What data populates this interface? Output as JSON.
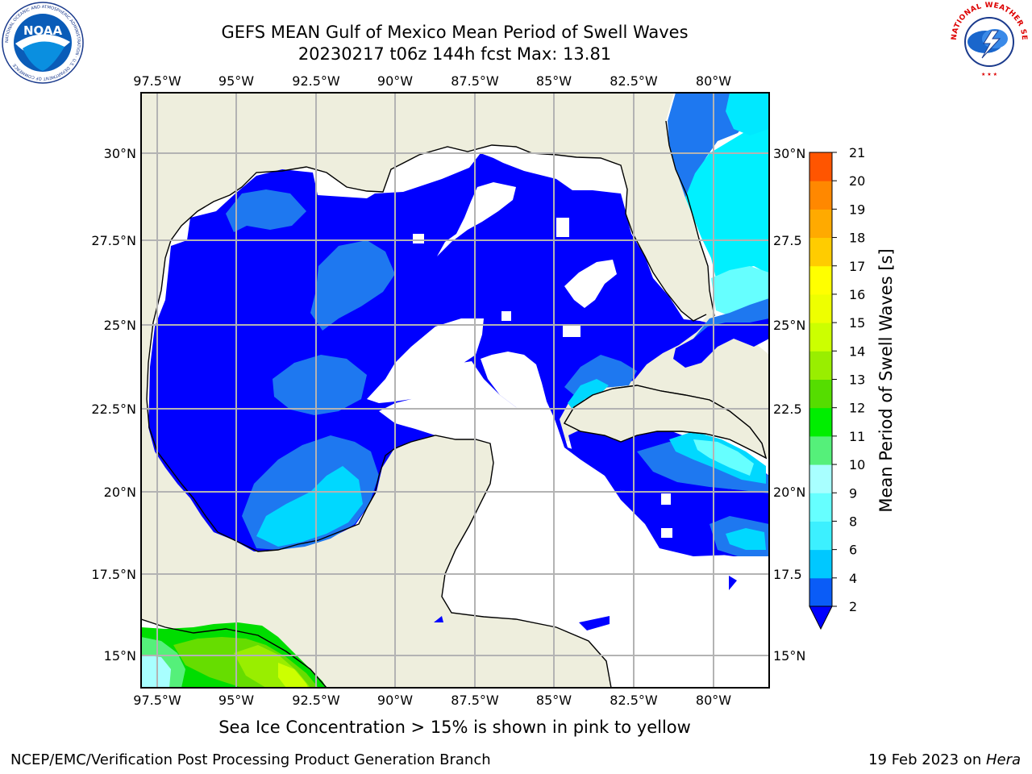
{
  "title": {
    "line1": "GEFS MEAN Gulf of Mexico Mean Period of Swell Waves",
    "line2": "20230217 t06z 144h fcst   Max: 13.81"
  },
  "map": {
    "region": "Gulf of Mexico",
    "lon_range": [
      -98.5,
      -78.75
    ],
    "lat_range": [
      14,
      31.75
    ],
    "lon_ticks": [
      "97.5°W",
      "95°W",
      "92.5°W",
      "90°W",
      "87.5°W",
      "85°W",
      "82.5°W",
      "80°W"
    ],
    "lat_ticks_left": [
      "30°N",
      "27.5°N",
      "25°N",
      "22.5°N",
      "20°N",
      "17.5°N",
      "15°N"
    ],
    "lat_ticks_right": [
      "30°N",
      "27.5",
      "25°N",
      "22.5",
      "20°N",
      "17.5",
      "15°N"
    ],
    "colors": {
      "land": "#eeeedd",
      "ocean_no_data": "#ffffff",
      "grid": "#b3b3b3"
    }
  },
  "colorbar": {
    "label": "Mean Period of Swell Waves [s]",
    "ticks": [
      "2",
      "4",
      "6",
      "8",
      "9",
      "10",
      "11",
      "12",
      "13",
      "14",
      "15",
      "16",
      "17",
      "18",
      "19",
      "20",
      "21"
    ],
    "colors": [
      "#0a5cf7",
      "#00c8ff",
      "#3cf0ff",
      "#66ffff",
      "#a8ffff",
      "#55f07a",
      "#00ee00",
      "#55dd00",
      "#99ee00",
      "#ccff00",
      "#eeff00",
      "#ffff00",
      "#ffcc00",
      "#ffaa00",
      "#ff8800",
      "#ff5500",
      "#ff2200"
    ],
    "extend_color": "#0000ff",
    "extend": "min"
  },
  "footer": {
    "note": "Sea Ice Concentration > 15% is shown in pink to yellow",
    "left": "NCEP/EMC/Verification Post Processing Product Generation Branch",
    "right_date": "19 Feb 2023 on ",
    "right_host": "Hera"
  },
  "logos": {
    "noaa_text": "NOAA",
    "noaa_ring": "NATIONAL OCEANIC AND ATMOSPHERIC ADMINISTRATION · U.S. DEPARTMENT OF COMMERCE",
    "nws_ring": "NATIONAL WEATHER SERVICE"
  }
}
